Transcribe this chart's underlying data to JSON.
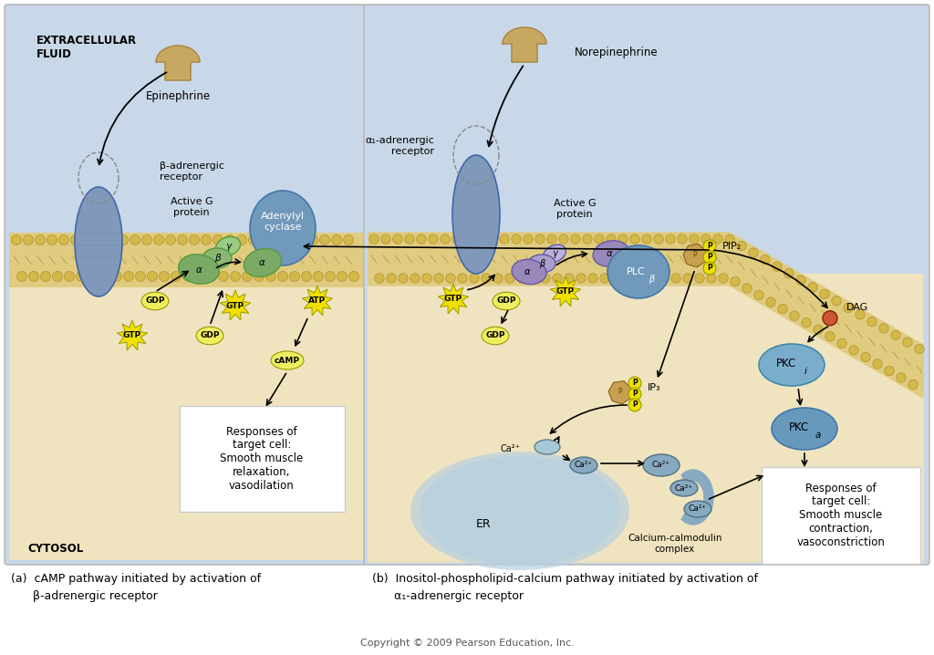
{
  "bg_extracellular": "#c8d8e8",
  "bg_cytosol": "#f0e4c0",
  "membrane_gold": "#d4b84a",
  "membrane_tan": "#e8d070",
  "receptor_blue": "#8099bb",
  "adenylyl_blue": "#7099bb",
  "g_green_alpha": "#7aaa65",
  "g_green_beta": "#88b872",
  "g_green_gamma": "#9acc82",
  "g_purple_alpha": "#9988bb",
  "g_purple_beta": "#aaa0cc",
  "g_purple_gamma": "#bbb2dd",
  "plc_blue": "#7099bb",
  "pkc_blue": "#7aadcc",
  "er_blue": "#a0bbd0",
  "ca_blue": "#88aac0",
  "epi_tan": "#c8a860",
  "gtp_yellow": "#f0e000",
  "gdp_yellow": "#eeee60",
  "atp_yellow": "#f0e000",
  "camp_yellow": "#eeee60",
  "pip_tan": "#c8a050",
  "dag_red": "#cc5533",
  "p_yellow": "#f0e000",
  "caption_a": "(a)  cAMP pathway initiated by activation of\n      β-adrenergic receptor",
  "caption_b": "(b)  Inositol-phospholipid-calcium pathway initiated by activation of\n      α₁-adrenergic receptor",
  "copyright": "Copyright © 2009 Pearson Education, Inc."
}
